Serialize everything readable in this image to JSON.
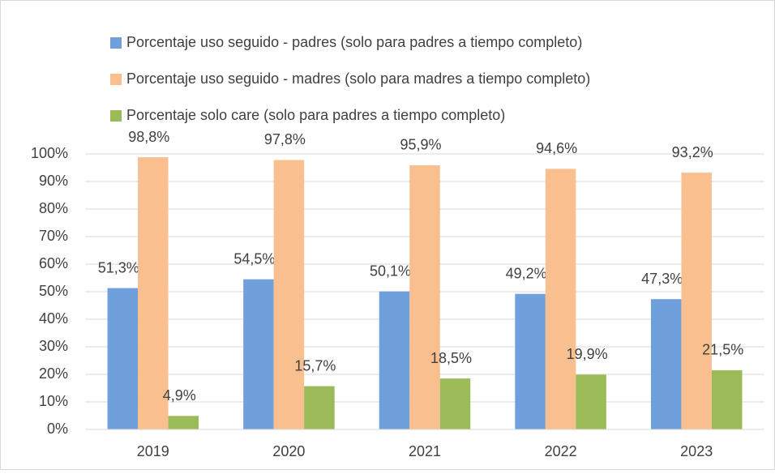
{
  "chart_data": {
    "type": "bar",
    "categories": [
      "2019",
      "2020",
      "2021",
      "2022",
      "2023"
    ],
    "series": [
      {
        "name": "Porcentaje uso seguido - padres (solo para padres a tiempo completo)",
        "color": "#6fa0dc",
        "values": [
          51.3,
          54.5,
          50.1,
          49.2,
          47.3
        ],
        "value_labels": [
          "51,3%",
          "54,5%",
          "50,1%",
          "49,2%",
          "47,3%"
        ]
      },
      {
        "name": "Porcentaje uso seguido - madres (solo para madres a tiempo completo)",
        "color": "#f9bf8f",
        "values": [
          98.8,
          97.8,
          95.9,
          94.6,
          93.2
        ],
        "value_labels": [
          "98,8%",
          "97,8%",
          "95,9%",
          "94,6%",
          "93,2%"
        ]
      },
      {
        "name": "Porcentaje solo care (solo para padres a tiempo completo)",
        "color": "#9bbb59",
        "values": [
          4.9,
          15.7,
          18.5,
          19.9,
          21.5
        ],
        "value_labels": [
          "4,9%",
          "15,7%",
          "18,5%",
          "19,9%",
          "21,5%"
        ]
      }
    ],
    "ylim": [
      0,
      100
    ],
    "yticks": [
      {
        "value": 0,
        "label": "0%"
      },
      {
        "value": 10,
        "label": "10%"
      },
      {
        "value": 20,
        "label": "20%"
      },
      {
        "value": 30,
        "label": "30%"
      },
      {
        "value": 40,
        "label": "40%"
      },
      {
        "value": 50,
        "label": "50%"
      },
      {
        "value": 60,
        "label": "60%"
      },
      {
        "value": 70,
        "label": "70%"
      },
      {
        "value": 80,
        "label": "80%"
      },
      {
        "value": 90,
        "label": "90%"
      },
      {
        "value": 100,
        "label": "100%"
      }
    ],
    "grid": true,
    "legend": "top"
  }
}
